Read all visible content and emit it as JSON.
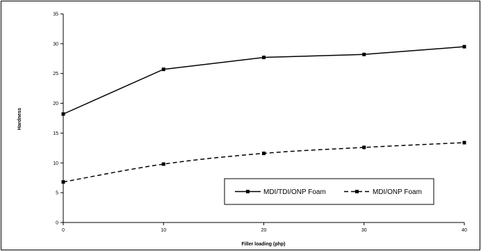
{
  "chart_data": {
    "type": "line",
    "title": "",
    "xlabel": "Filler loading (php)",
    "ylabel": "Hardness",
    "x": [
      0,
      10,
      20,
      30,
      40
    ],
    "xlim": [
      0,
      40
    ],
    "ylim": [
      0,
      35
    ],
    "xticks": [
      0,
      10,
      20,
      30,
      40
    ],
    "yticks": [
      0,
      5,
      10,
      15,
      20,
      25,
      30,
      35
    ],
    "grid": false,
    "legend_position": "lower-right",
    "series": [
      {
        "name": "MDI/TDI/ONP Foam",
        "style": "solid",
        "marker": "square",
        "color": "#000000",
        "values": [
          18.2,
          25.7,
          27.7,
          28.2,
          29.5
        ]
      },
      {
        "name": "MDI/ONP Foam",
        "style": "dashed",
        "marker": "square",
        "color": "#000000",
        "values": [
          6.8,
          9.8,
          11.6,
          12.6,
          13.4
        ]
      }
    ]
  }
}
